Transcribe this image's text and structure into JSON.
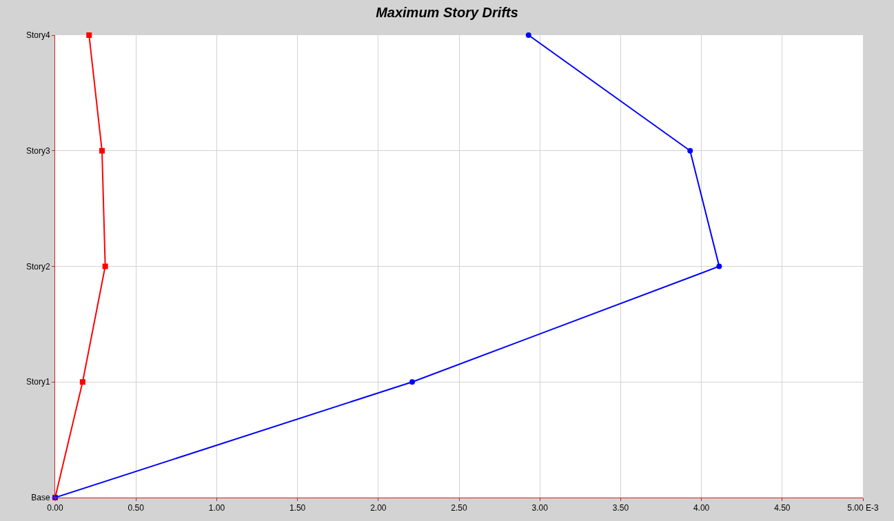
{
  "chart_data": {
    "type": "line",
    "title": "Maximum Story Drifts",
    "orientation": "horizontal",
    "categories": [
      "Story4",
      "Story3",
      "Story2",
      "Story1",
      "Base"
    ],
    "series": [
      {
        "color": "#ff0000",
        "marker": "square",
        "values": [
          0.21,
          0.29,
          0.31,
          0.17,
          0
        ]
      },
      {
        "color": "#0000ff",
        "marker": "circle",
        "values": [
          2.93,
          3.93,
          4.11,
          2.21,
          0
        ]
      }
    ],
    "xlim": [
      0,
      5
    ],
    "xticks": [
      {
        "value": 0,
        "label": "0.00"
      },
      {
        "value": 0.5,
        "label": "0.50"
      },
      {
        "value": 1,
        "label": "1.00"
      },
      {
        "value": 1.5,
        "label": "1.50"
      },
      {
        "value": 2,
        "label": "2.00"
      },
      {
        "value": 2.5,
        "label": "2.50"
      },
      {
        "value": 3,
        "label": "3.00"
      },
      {
        "value": 3.5,
        "label": "3.50"
      },
      {
        "value": 4,
        "label": "4.00"
      },
      {
        "value": 4.5,
        "label": "4.50"
      },
      {
        "value": 5,
        "label": "5.00 E-3"
      }
    ],
    "grid": true,
    "line_style": "solid"
  }
}
